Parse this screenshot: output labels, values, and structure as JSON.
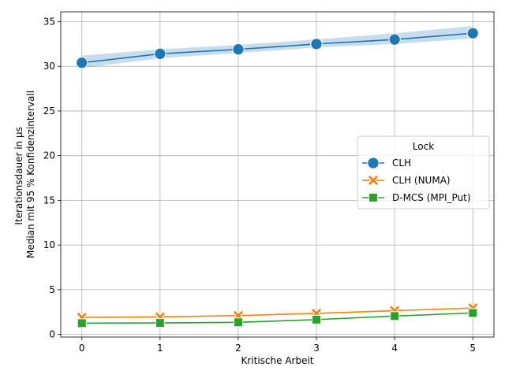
{
  "chart_data": {
    "type": "line",
    "title": "",
    "xlabel": "Kritische Arbeit",
    "ylabel_lines": [
      "Iterationsdauer in µs",
      "Median mit 95 % Konfidenzintervall"
    ],
    "x": [
      0,
      1,
      2,
      3,
      4,
      5
    ],
    "x_ticks": [
      "0",
      "1",
      "2",
      "3",
      "4",
      "5"
    ],
    "y_ticks": [
      "0",
      "5",
      "10",
      "15",
      "20",
      "25",
      "30",
      "35"
    ],
    "xlim": [
      -0.27,
      5.27
    ],
    "ylim": [
      -0.3,
      36.1
    ],
    "grid": true,
    "legend": {
      "title": "Lock",
      "placement": "center-right"
    },
    "series": [
      {
        "name": "CLH",
        "color": "#1f77b4",
        "marker": "circle",
        "values": [
          30.4,
          31.4,
          31.9,
          32.5,
          33.0,
          33.7
        ],
        "ci_low": [
          29.8,
          30.9,
          31.5,
          32.1,
          32.5,
          33.1
        ],
        "ci_high": [
          31.2,
          31.9,
          32.4,
          33.0,
          33.7,
          34.5
        ]
      },
      {
        "name": "CLH (NUMA)",
        "color": "#ff7f0e",
        "marker": "x-filled",
        "values": [
          1.9,
          1.95,
          2.1,
          2.35,
          2.65,
          2.95
        ]
      },
      {
        "name": "D-MCS (MPI_Put)",
        "color": "#2ca02c",
        "marker": "square",
        "values": [
          1.25,
          1.28,
          1.35,
          1.65,
          2.05,
          2.4
        ]
      }
    ]
  }
}
